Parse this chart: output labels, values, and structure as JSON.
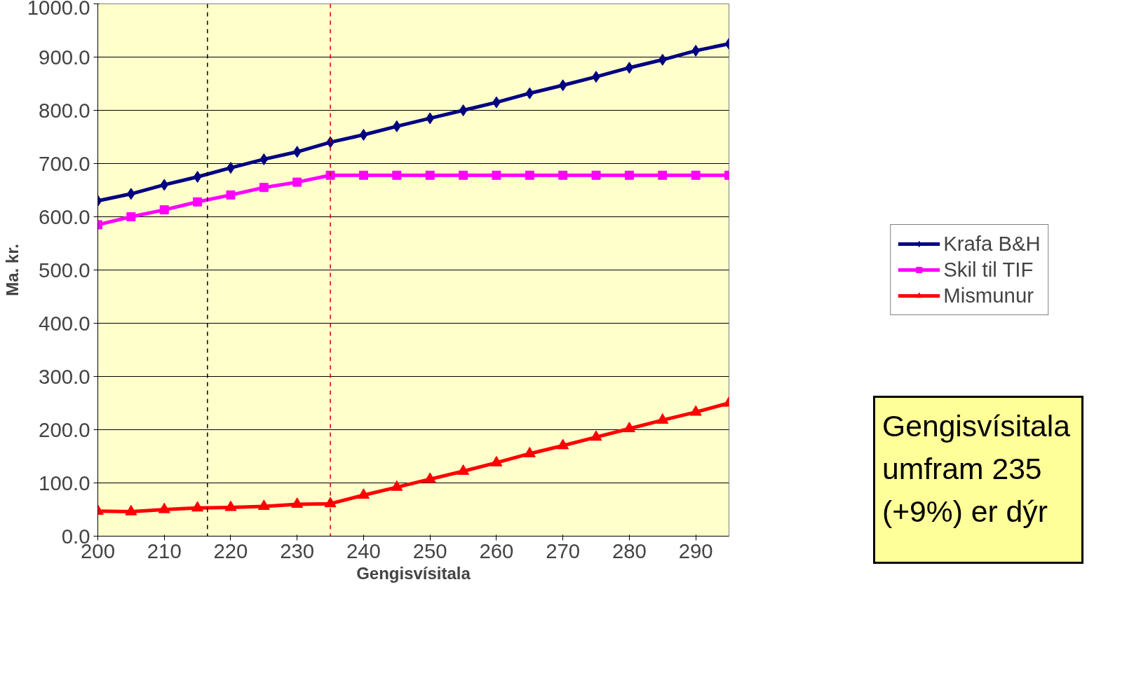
{
  "chart_data": {
    "type": "line",
    "xlabel": "Gengisvísitala",
    "ylabel": "Ma. kr.",
    "x": [
      200,
      205,
      210,
      215,
      220,
      225,
      230,
      235,
      240,
      245,
      250,
      255,
      260,
      265,
      270,
      275,
      280,
      285,
      290,
      295
    ],
    "series": [
      {
        "name": "Krafa B&H",
        "color": "#000080",
        "marker": "diamond",
        "values": [
          630,
          643,
          660,
          675,
          692,
          708,
          722,
          740,
          754,
          770,
          785,
          800,
          815,
          832,
          847,
          863,
          880,
          895,
          912,
          925
        ]
      },
      {
        "name": "Skil til TIF",
        "color": "#ff00ff",
        "marker": "square",
        "values": [
          585,
          600,
          613,
          628,
          641,
          655,
          665,
          678,
          678,
          678,
          678,
          678,
          678,
          678,
          678,
          678,
          678,
          678,
          678,
          678
        ]
      },
      {
        "name": "Mismunur",
        "color": "#ff0000",
        "marker": "triangle",
        "values": [
          47,
          46,
          50,
          53,
          54,
          56,
          60,
          61,
          77,
          92,
          107,
          122,
          138,
          155,
          170,
          186,
          202,
          218,
          233,
          250
        ]
      }
    ],
    "xlim": [
      200,
      295
    ],
    "xticks": [
      200,
      210,
      220,
      230,
      240,
      250,
      260,
      270,
      280,
      290
    ],
    "ylim": [
      0,
      1000
    ],
    "yticks": [
      {
        "value": 0,
        "label": "0.0"
      },
      {
        "value": 100,
        "label": "100.0"
      },
      {
        "value": 200,
        "label": "200.0"
      },
      {
        "value": 300,
        "label": "300.0"
      },
      {
        "value": 400,
        "label": "400.0"
      },
      {
        "value": 500,
        "label": "500.0"
      },
      {
        "value": 600,
        "label": "600.0"
      },
      {
        "value": 700,
        "label": "700.0"
      },
      {
        "value": 800,
        "label": "800.0"
      },
      {
        "value": 900,
        "label": "900.0"
      },
      {
        "value": 1000,
        "label": "1000.0"
      }
    ],
    "grid": "y",
    "legend": "right",
    "line_style": "solid",
    "ref_lines": [
      {
        "axis": "x",
        "value": 216.5,
        "color": "#000000",
        "line_style": "dashed"
      },
      {
        "axis": "x",
        "value": 235,
        "color": "#cc0000",
        "line_style": "dashed"
      }
    ],
    "annotations": [
      "Gengisvísitala umfram 235 (+9%) er dýr"
    ]
  }
}
